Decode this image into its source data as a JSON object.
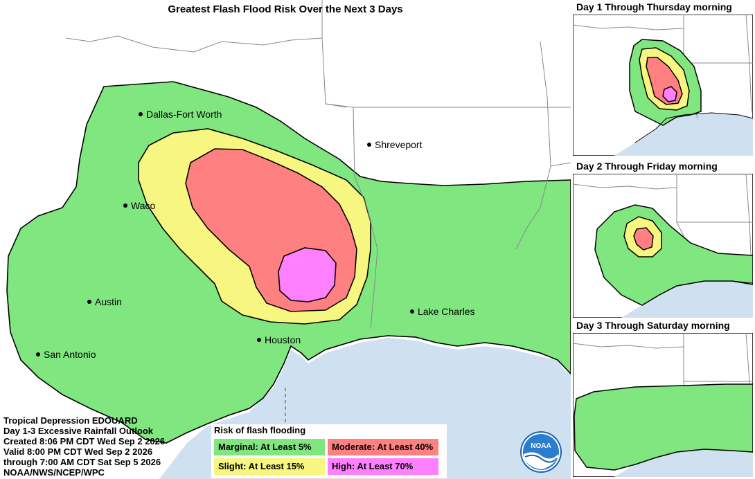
{
  "title": "Greatest Flash Flood Risk Over the Next 3 Days",
  "cities": {
    "dallas": "Dallas-Fort Worth",
    "shreveport": "Shreveport",
    "waco": "Waco",
    "austin": "Austin",
    "lake_charles": "Lake Charles",
    "houston": "Houston",
    "san_antonio": "San Antonio"
  },
  "info": {
    "line1": "Tropical Depression EDOUARD",
    "line2": "Day 1-3 Excessive Rainfall Outlook",
    "line3": "Created 8:06 PM CDT Wed Sep 2 2026",
    "line4": "Valid 8:00 PM CDT Wed Sep 2 2026",
    "line5": "through 7:00 AM CDT Sat Sep 5 2026",
    "line6": "NOAA/NWS/NCEP/WPC"
  },
  "legend": {
    "title": "Risk of flash flooding",
    "marginal": "Marginal: At Least 5%",
    "moderate": "Moderate: At Least 40%",
    "slight": "Slight: At Least 15%",
    "high": "High: At Least 70%"
  },
  "panels": {
    "day1": "Day 1 Through Thursday morning",
    "day2": "Day 2 Through Friday morning",
    "day3": "Day 3 Through Saturday morning"
  },
  "logo_text": "NOAA",
  "colors": {
    "marginal": "#80e680",
    "slight": "#f6f680",
    "moderate": "#ff8080",
    "high": "#ff80ff",
    "water": "#cfe0f0",
    "land": "#ffffff"
  }
}
